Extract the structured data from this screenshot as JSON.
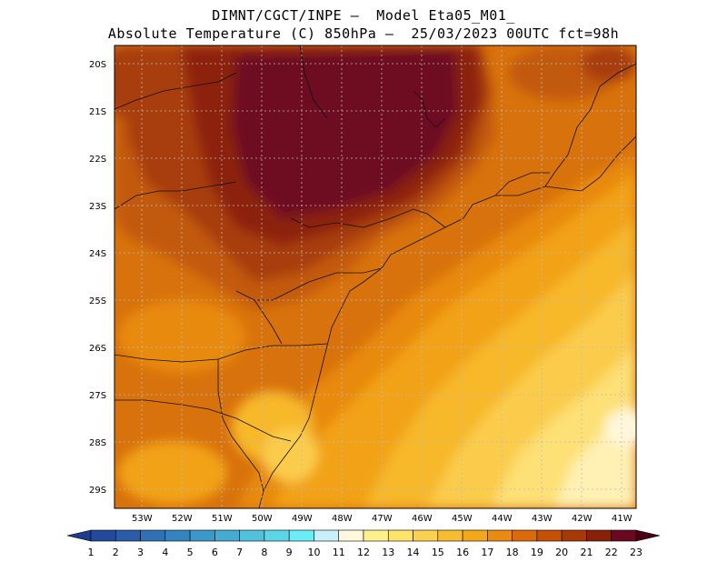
{
  "title_line1": "DIMNT/CGCT/INPE –  Model Eta05_M01_",
  "title_line2": "Absolute Temperature (C) 850hPa –  25/03/2023 00UTC fct=98h",
  "lat_labels": [
    "20S",
    "21S",
    "22S",
    "23S",
    "24S",
    "25S",
    "26S",
    "27S",
    "28S",
    "29S"
  ],
  "lon_labels": [
    "53W",
    "52W",
    "51W",
    "50W",
    "49W",
    "48W",
    "47W",
    "46W",
    "45W",
    "44W",
    "43W",
    "42W",
    "41W"
  ],
  "colorbar": {
    "labels": [
      "1",
      "2",
      "3",
      "4",
      "5",
      "6",
      "7",
      "8",
      "9",
      "10",
      "11",
      "12",
      "13",
      "14",
      "15",
      "16",
      "17",
      "18",
      "19",
      "20",
      "21",
      "22",
      "23"
    ],
    "colors": [
      "#1e3c8c",
      "#234a9a",
      "#2a5ca8",
      "#3070b4",
      "#3584bf",
      "#3c98c8",
      "#44acd2",
      "#50c2dc",
      "#5ad6e6",
      "#6aeef5",
      "#c8f0f8",
      "#fff8dc",
      "#fff08c",
      "#ffe46a",
      "#fcd050",
      "#f8bc30",
      "#f4a818",
      "#ea8a10",
      "#dc6a08",
      "#c65004",
      "#a83804",
      "#8a2008",
      "#6a0820",
      "#4a0014"
    ]
  },
  "legend_colors": {
    "t23": "#6e0a24",
    "t22": "#8c2410",
    "t21": "#a83c0a",
    "t20": "#c25a0c",
    "t19": "#d8720c",
    "t18": "#e88a10",
    "t17": "#f2a214",
    "t16": "#f7b82c",
    "t15": "#fbcc4c",
    "t14": "#fde076",
    "t13": "#fff1b4",
    "t12": "#fff7dc"
  }
}
